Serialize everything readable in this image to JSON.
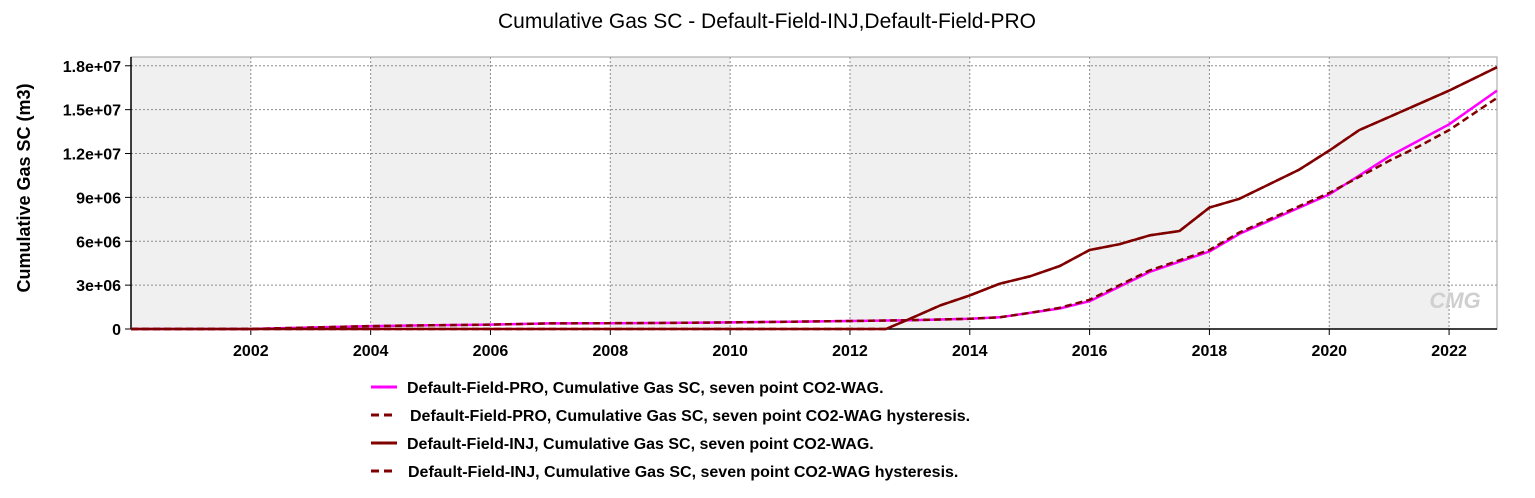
{
  "chart_data": {
    "type": "line",
    "title": "Cumulative Gas SC - Default-Field-INJ,Default-Field-PRO",
    "ylabel": "Cumulative Gas SC (m3)",
    "xlabel": "",
    "xlim": [
      2000.0,
      2022.8
    ],
    "ylim": [
      0,
      18600000
    ],
    "x_ticks": [
      2002,
      2004,
      2006,
      2008,
      2010,
      2012,
      2014,
      2016,
      2018,
      2020,
      2022
    ],
    "x_tick_labels": [
      "2002",
      "2004",
      "2006",
      "2008",
      "2010",
      "2012",
      "2014",
      "2016",
      "2018",
      "2020",
      "2022"
    ],
    "y_ticks": [
      0,
      3000000,
      6000000,
      9000000,
      12000000,
      15000000,
      18000000
    ],
    "y_tick_labels": [
      "0",
      "3e+06",
      "6e+06",
      "9e+06",
      "1.2e+07",
      "1.5e+07",
      "1.8e+07"
    ],
    "grid": true,
    "legend_position": "bottom",
    "watermark": "CMG",
    "series": [
      {
        "name": "Default-Field-PRO, Cumulative Gas SC, seven point CO2-WAG.",
        "color": "#ff00ff",
        "dash": "solid",
        "x": [
          2000.0,
          2002.0,
          2003.0,
          2004.0,
          2005.0,
          2006.0,
          2007.0,
          2008.0,
          2009.0,
          2010.0,
          2011.0,
          2012.0,
          2013.0,
          2014.0,
          2014.5,
          2015.0,
          2015.5,
          2016.0,
          2016.5,
          2017.0,
          2017.5,
          2018.0,
          2018.5,
          2019.0,
          2019.5,
          2020.0,
          2020.5,
          2021.0,
          2021.5,
          2022.0,
          2022.8
        ],
        "y": [
          0,
          0,
          100000,
          200000,
          250000,
          300000,
          380000,
          400000,
          420000,
          450000,
          500000,
          550000,
          600000,
          700000,
          800000,
          1100000,
          1400000,
          1900000,
          2900000,
          3900000,
          4600000,
          5300000,
          6500000,
          7400000,
          8300000,
          9200000,
          10500000,
          11800000,
          12900000,
          14000000,
          16300000
        ]
      },
      {
        "name": "Default-Field-PRO, Cumulative Gas SC, seven point CO2-WAG hysteresis.",
        "color": "#800000",
        "dash": "dashed",
        "x": [
          2000.0,
          2002.0,
          2003.0,
          2004.0,
          2005.0,
          2006.0,
          2007.0,
          2008.0,
          2009.0,
          2010.0,
          2011.0,
          2012.0,
          2013.0,
          2014.0,
          2014.5,
          2015.0,
          2015.5,
          2016.0,
          2016.5,
          2017.0,
          2017.5,
          2018.0,
          2018.5,
          2019.0,
          2019.5,
          2020.0,
          2020.5,
          2021.0,
          2021.5,
          2022.0,
          2022.8
        ],
        "y": [
          0,
          0,
          100000,
          200000,
          250000,
          300000,
          380000,
          400000,
          420000,
          450000,
          500000,
          550000,
          600000,
          700000,
          800000,
          1100000,
          1450000,
          2000000,
          3000000,
          4000000,
          4700000,
          5400000,
          6600000,
          7500000,
          8400000,
          9300000,
          10400000,
          11500000,
          12500000,
          13600000,
          15800000
        ]
      },
      {
        "name": "Default-Field-INJ, Cumulative Gas SC, seven point CO2-WAG.",
        "color": "#800000",
        "dash": "solid",
        "x": [
          2000.0,
          2012.6,
          2013.0,
          2013.5,
          2014.0,
          2014.5,
          2015.0,
          2015.5,
          2016.0,
          2016.5,
          2017.0,
          2017.5,
          2018.0,
          2018.5,
          2019.0,
          2019.5,
          2020.0,
          2020.5,
          2021.0,
          2021.5,
          2022.0,
          2022.8
        ],
        "y": [
          0,
          0,
          700000,
          1600000,
          2300000,
          3100000,
          3600000,
          4300000,
          5400000,
          5800000,
          6400000,
          6700000,
          8300000,
          8900000,
          9900000,
          10900000,
          12200000,
          13600000,
          14500000,
          15400000,
          16300000,
          17900000
        ]
      },
      {
        "name": "Default-Field-INJ, Cumulative Gas SC, seven point CO2-WAG hysteresis.",
        "color": "#800000",
        "dash": "dashed",
        "x": [
          2000.0,
          2012.6,
          2013.0,
          2013.5,
          2014.0,
          2014.5,
          2015.0,
          2015.5,
          2016.0,
          2016.5,
          2017.0,
          2017.5,
          2018.0,
          2018.5,
          2019.0,
          2019.5,
          2020.0,
          2020.5,
          2021.0,
          2021.5,
          2022.0,
          2022.8
        ],
        "y": [
          0,
          0,
          700000,
          1600000,
          2300000,
          3100000,
          3600000,
          4300000,
          5400000,
          5800000,
          6400000,
          6700000,
          8300000,
          8900000,
          9900000,
          10900000,
          12200000,
          13600000,
          14500000,
          15400000,
          16300000,
          17900000
        ]
      }
    ]
  }
}
